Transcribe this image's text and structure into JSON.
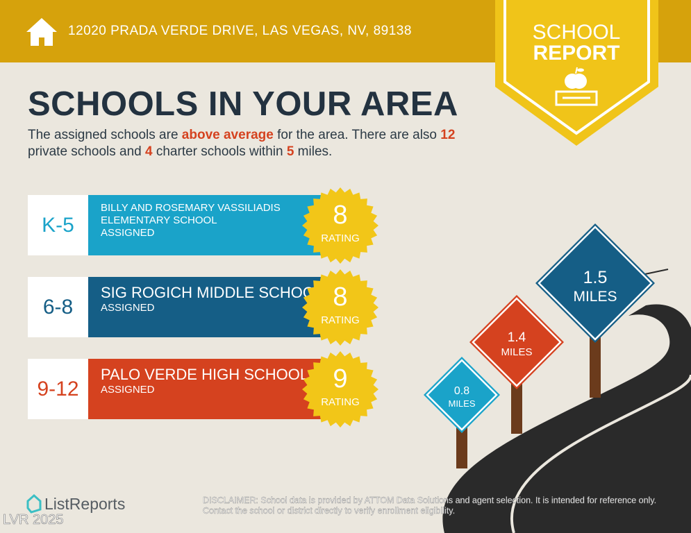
{
  "header": {
    "address": "12020 PRADA VERDE DRIVE, LAS VEGAS, NV, 89138",
    "icon": "home-icon"
  },
  "badge": {
    "line1": "SCHOOL",
    "line2": "REPORT",
    "icon": "apple-on-book-icon"
  },
  "title": "SCHOOLS IN YOUR AREA",
  "intro": {
    "p1": "The assigned schools are ",
    "h1": "above average",
    "p2": " for the area. There are also ",
    "h2": "12",
    "p3": " private schools and ",
    "h3": "4",
    "p4": " charter schools within ",
    "h4": "5",
    "p5": " miles."
  },
  "schools": [
    {
      "grade": "K-5",
      "name": "BILLY AND ROSEMARY VASSILIADIS ELEMENTARY SCHOOL",
      "status": "ASSIGNED",
      "rating": "8",
      "rating_label": "RATING",
      "color": "#1aa3c9"
    },
    {
      "grade": "6-8",
      "name": "SIG ROGICH MIDDLE SCHOOL",
      "status": "ASSIGNED",
      "rating": "8",
      "rating_label": "RATING",
      "color": "#155e86"
    },
    {
      "grade": "9-12",
      "name": "PALO VERDE HIGH SCHOOL",
      "status": "ASSIGNED",
      "rating": "9",
      "rating_label": "RATING",
      "color": "#d5421f"
    }
  ],
  "signs": [
    {
      "value": "0.8",
      "unit": "MILES",
      "color": "#1aa3c9"
    },
    {
      "value": "1.4",
      "unit": "MILES",
      "color": "#d5421f"
    },
    {
      "value": "1.5",
      "unit": "MILES",
      "color": "#155e86"
    }
  ],
  "footer": {
    "logo": "ListReports",
    "watermark": "LVR 2025",
    "disclaimer_label": "DISCLAIMER:",
    "disclaimer": " School data is provided by ATTOM Data Solutions and agent selection. It is intended for reference only. Contact the school or district directly to verify enrollment eligibility."
  }
}
